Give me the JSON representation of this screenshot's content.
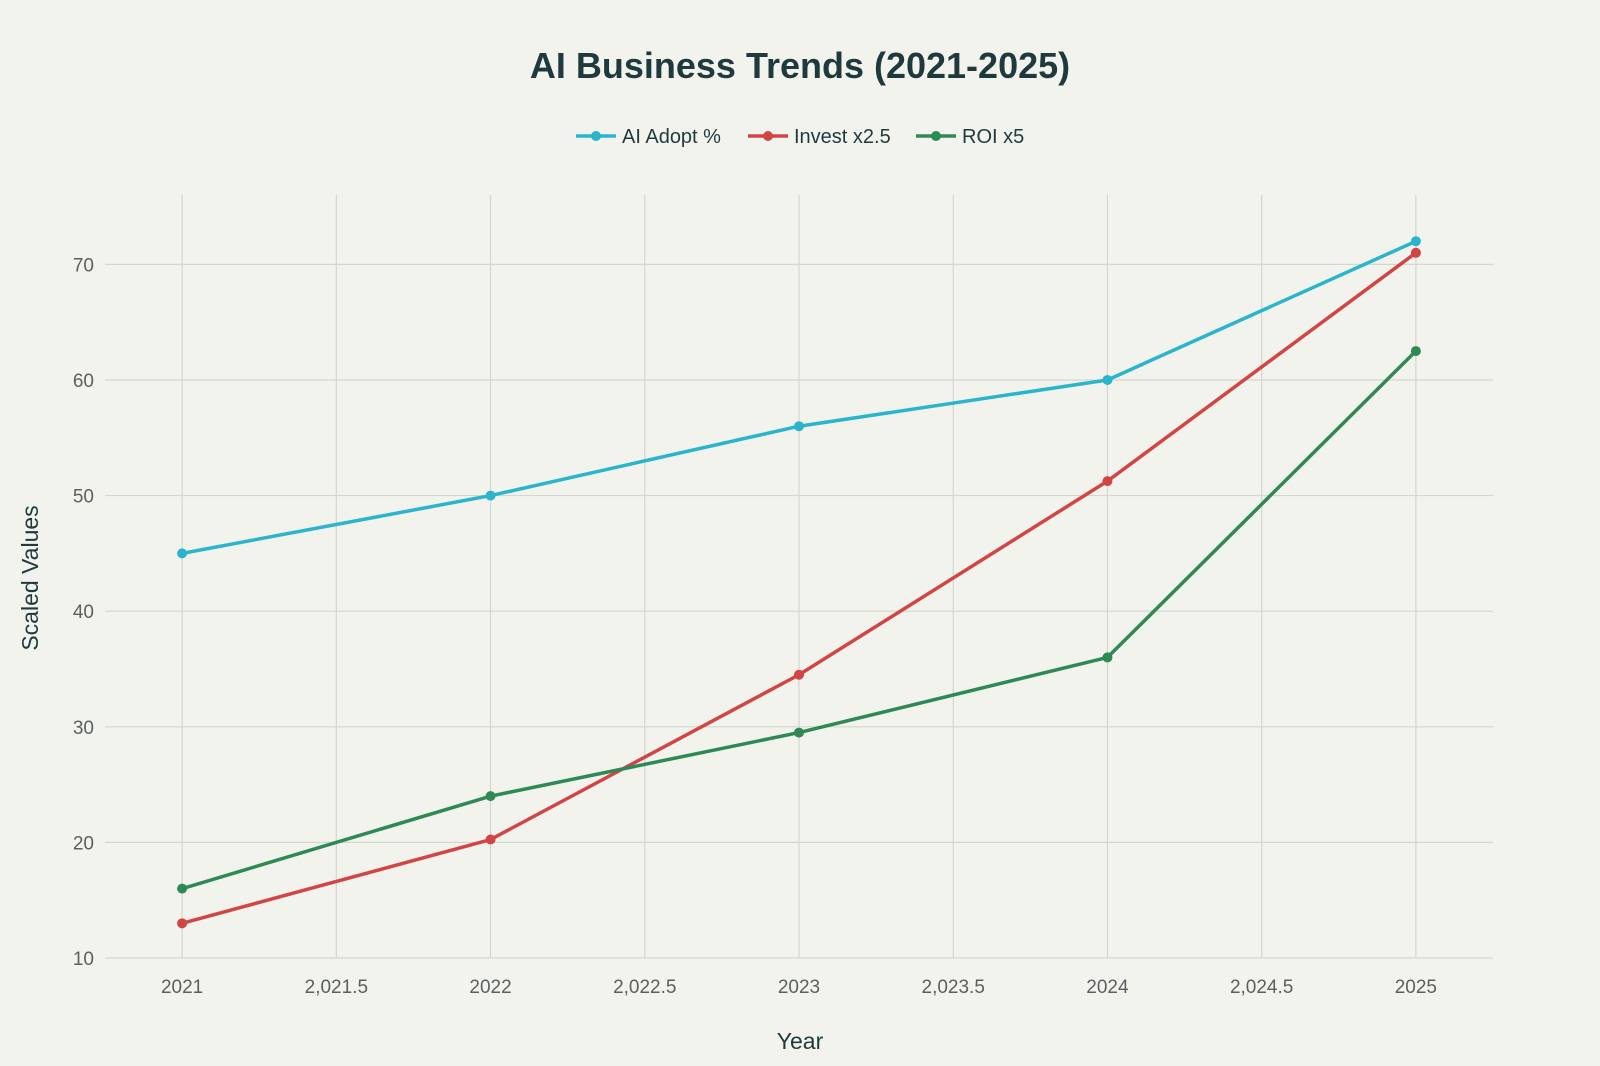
{
  "chart_data": {
    "type": "line",
    "title": "AI Business Trends (2021-2025)",
    "xlabel": "Year",
    "ylabel": "Scaled Values",
    "x": [
      2021,
      2022,
      2023,
      2024,
      2025
    ],
    "x_ticks": [
      2021,
      2021.5,
      2022,
      2022.5,
      2023,
      2023.5,
      2024,
      2024.5,
      2025
    ],
    "x_tick_labels": [
      "2021",
      "2,021.5",
      "2022",
      "2,022.5",
      "2023",
      "2,023.5",
      "2024",
      "2,024.5",
      "2025"
    ],
    "xlim": [
      2020.75,
      2025.25
    ],
    "y_ticks": [
      10,
      20,
      30,
      40,
      50,
      60,
      70
    ],
    "ylim": [
      10,
      76
    ],
    "grid": true,
    "legend_position": "top-center",
    "series": [
      {
        "name": "AI Adopt %",
        "color": "#2bb5cc",
        "values": [
          45,
          50,
          56,
          60,
          72
        ]
      },
      {
        "name": "Invest x2.5",
        "color": "#d24545",
        "values": [
          13,
          20.25,
          34.5,
          51.25,
          71
        ]
      },
      {
        "name": "ROI x5",
        "color": "#2e8a55",
        "values": [
          16,
          24,
          29.5,
          36,
          62.5
        ]
      }
    ]
  }
}
